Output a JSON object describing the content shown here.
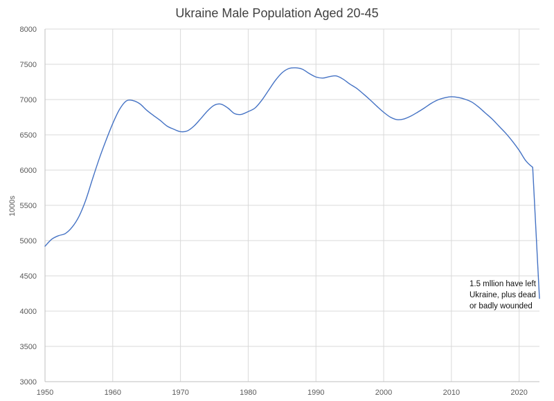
{
  "chart_data": {
    "type": "line",
    "title": "Ukraine Male Population Aged 20-45",
    "xlabel": "",
    "ylabel": "1000s",
    "xlim": [
      1950,
      2023
    ],
    "ylim": [
      3000,
      8000
    ],
    "x_ticks": [
      1950,
      1960,
      1970,
      1980,
      1990,
      2000,
      2010,
      2020
    ],
    "y_ticks": [
      3000,
      3500,
      4000,
      4500,
      5000,
      5500,
      6000,
      6500,
      7000,
      7500,
      8000
    ],
    "grid": true,
    "legend": "none",
    "line_color": "#4472c4",
    "series": [
      {
        "x": [
          1950,
          1951,
          1952,
          1953,
          1954,
          1955,
          1956,
          1957,
          1958,
          1959,
          1960,
          1961,
          1962,
          1963,
          1964,
          1965,
          1966,
          1967,
          1968,
          1969,
          1970,
          1971,
          1972,
          1973,
          1974,
          1975,
          1976,
          1977,
          1978,
          1979,
          1980,
          1981,
          1982,
          1983,
          1984,
          1985,
          1986,
          1987,
          1988,
          1989,
          1990,
          1991,
          1992,
          1993,
          1994,
          1995,
          1996,
          1997,
          1998,
          1999,
          2000,
          2001,
          2002,
          2003,
          2004,
          2005,
          2006,
          2007,
          2008,
          2009,
          2010,
          2011,
          2012,
          2013,
          2014,
          2015,
          2016,
          2017,
          2018,
          2019,
          2020,
          2021,
          2022,
          2023
        ],
        "y": [
          4920,
          5020,
          5070,
          5100,
          5190,
          5340,
          5570,
          5870,
          6160,
          6420,
          6660,
          6860,
          6980,
          6985,
          6940,
          6850,
          6775,
          6705,
          6625,
          6580,
          6545,
          6555,
          6625,
          6730,
          6840,
          6920,
          6935,
          6880,
          6800,
          6790,
          6830,
          6880,
          6990,
          7130,
          7270,
          7380,
          7440,
          7450,
          7430,
          7370,
          7320,
          7305,
          7325,
          7335,
          7290,
          7220,
          7160,
          7080,
          6995,
          6905,
          6820,
          6750,
          6715,
          6725,
          6765,
          6820,
          6880,
          6945,
          6995,
          7025,
          7040,
          7030,
          7005,
          6965,
          6895,
          6810,
          6725,
          6625,
          6525,
          6410,
          6280,
          6130,
          6040,
          4180
        ]
      }
    ],
    "annotation": {
      "lines": [
        "1.5 mllion have left",
        "Ukraine, plus dead",
        "or badly wounded"
      ]
    }
  }
}
